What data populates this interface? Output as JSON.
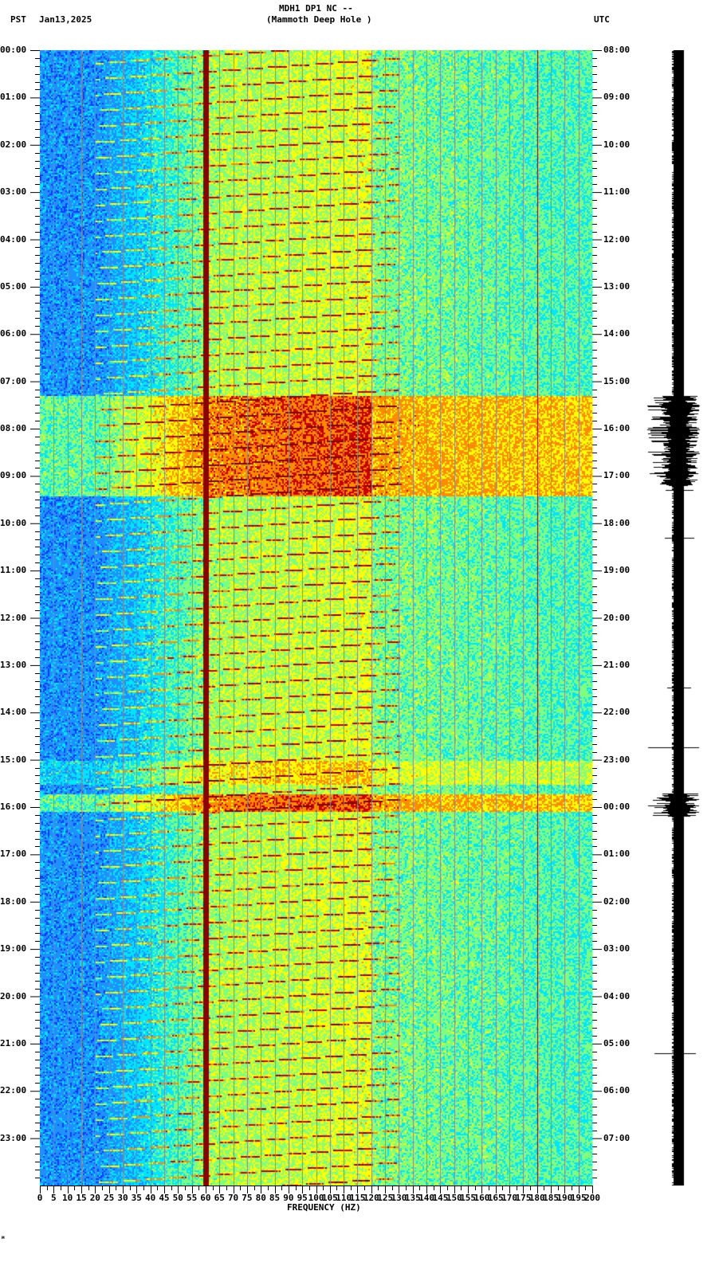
{
  "header": {
    "title_line1": "MDH1 DP1 NC --",
    "title_line2": "(Mammoth Deep Hole )",
    "left_timezone": "PST",
    "date": "Jan13,2025",
    "right_timezone": "UTC"
  },
  "footer": {
    "corner_mark": "м"
  },
  "chart_data": {
    "type": "heatmap",
    "title": "MDH1 DP1 NC -- (Mammoth Deep Hole ) Jan13,2025",
    "xlabel": "FREQUENCY (HZ)",
    "ylabel_left": "PST",
    "ylabel_right": "UTC",
    "xlim": [
      0,
      200
    ],
    "x_ticks": [
      "0",
      "5",
      "10",
      "15",
      "20",
      "25",
      "30",
      "35",
      "40",
      "45",
      "50",
      "55",
      "60",
      "65",
      "70",
      "75",
      "80",
      "85",
      "90",
      "95",
      "100",
      "105",
      "110",
      "115",
      "120",
      "125",
      "130",
      "135",
      "140",
      "145",
      "150",
      "155",
      "160",
      "165",
      "170",
      "175",
      "180",
      "185",
      "190",
      "195",
      "200"
    ],
    "y_ticks_left": [
      "00:00",
      "01:00",
      "02:00",
      "03:00",
      "04:00",
      "05:00",
      "06:00",
      "07:00",
      "08:00",
      "09:00",
      "10:00",
      "11:00",
      "12:00",
      "13:00",
      "14:00",
      "15:00",
      "16:00",
      "17:00",
      "18:00",
      "19:00",
      "20:00",
      "21:00",
      "22:00",
      "23:00"
    ],
    "y_ticks_right": [
      "08:00",
      "09:00",
      "10:00",
      "11:00",
      "12:00",
      "13:00",
      "14:00",
      "15:00",
      "16:00",
      "17:00",
      "18:00",
      "19:00",
      "20:00",
      "21:00",
      "22:00",
      "23:00",
      "00:00",
      "01:00",
      "02:00",
      "03:00",
      "04:00",
      "05:00",
      "06:00",
      "07:00"
    ],
    "grid": true,
    "grid_spacing_hz": 5,
    "colormap": [
      "#0a3cff",
      "#1e90ff",
      "#00e5ff",
      "#7fff7f",
      "#ffff00",
      "#ff8c00",
      "#c80000",
      "#7f0000"
    ],
    "persistent_lines_hz": [
      60,
      180
    ],
    "noise_bursts_pst_hours": [
      [
        7.3,
        9.4
      ],
      [
        15.7,
        16.1
      ]
    ],
    "wind_band_pst_hours": [
      15.0,
      15.5
    ],
    "seismogram_events_pst_hours": [
      [
        7.3,
        9.2
      ],
      [
        15.7,
        16.2
      ]
    ]
  },
  "colors": {
    "grid": "#8a8a8a",
    "line_60hz": "#8b0000",
    "trace": "#000000"
  }
}
